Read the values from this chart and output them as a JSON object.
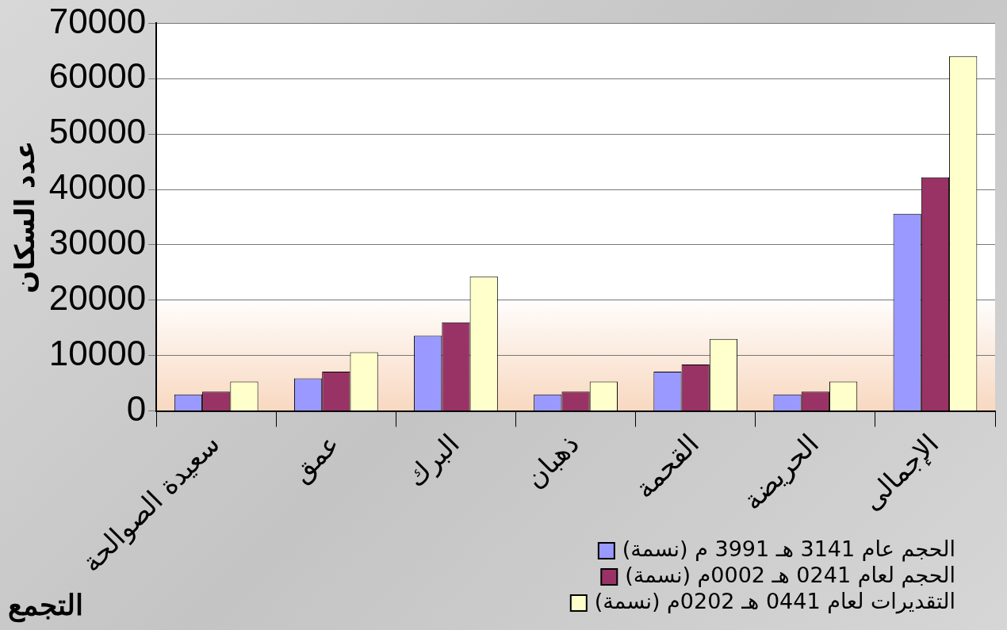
{
  "chart_data": {
    "type": "bar",
    "xlabel": "التجمع",
    "ylabel": "عدد السكان",
    "categories": [
      "سعيدة الصوالحة",
      "عمق",
      "البرك",
      "ذهبان",
      "القحمة",
      "الحريضة",
      "الإجمالى"
    ],
    "series": [
      {
        "name": "الحجم عام 3141 هـ 3991 م (نسمة)",
        "color": "#9999ff",
        "values": [
          3000,
          5900,
          13600,
          3000,
          7100,
          3000,
          35600
        ]
      },
      {
        "name": "الحجم لعام 0241 هـ 0002م (نسمة)",
        "color": "#993366",
        "values": [
          3500,
          7100,
          16000,
          3500,
          8400,
          3500,
          42200
        ]
      },
      {
        "name": "التقديرات لعام 0441 هـ 0202م (نسمة)",
        "color": "#ffffcc",
        "values": [
          5300,
          10600,
          24300,
          5300,
          13000,
          5300,
          64100
        ]
      }
    ],
    "ylim": [
      0,
      70000
    ],
    "yticks": [
      0,
      10000,
      20000,
      30000,
      40000,
      50000,
      60000,
      70000
    ],
    "grid": "y",
    "legend": "bottom right"
  }
}
